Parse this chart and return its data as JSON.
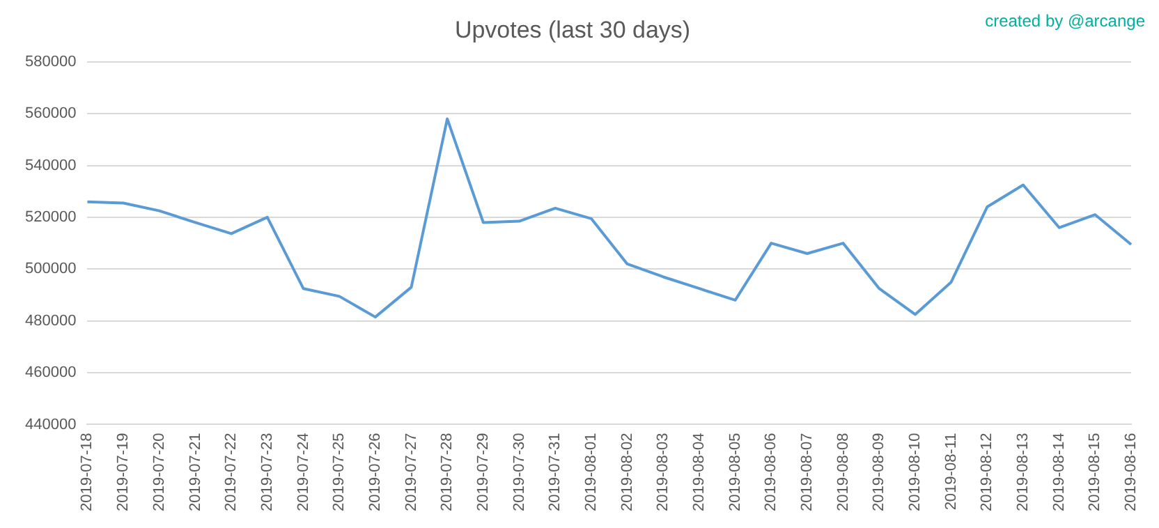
{
  "chart_data": {
    "type": "line",
    "title": "Upvotes (last 30 days)",
    "annotations": [
      "created by @arcange"
    ],
    "categories": [
      "2019-07-18",
      "2019-07-19",
      "2019-07-20",
      "2019-07-21",
      "2019-07-22",
      "2019-07-23",
      "2019-07-24",
      "2019-07-25",
      "2019-07-26",
      "2019-07-27",
      "2019-07-28",
      "2019-07-29",
      "2019-07-30",
      "2019-07-31",
      "2019-08-01",
      "2019-08-02",
      "2019-08-03",
      "2019-08-04",
      "2019-08-05",
      "2019-08-06",
      "2019-08-07",
      "2019-08-08",
      "2019-08-09",
      "2019-08-10",
      "2019-08-11",
      "2019-08-12",
      "2019-08-13",
      "2019-08-14",
      "2019-08-15",
      "2019-08-16"
    ],
    "series": [
      {
        "color": "#5b9bd5",
        "values": [
          526000,
          525500,
          522500,
          518000,
          513700,
          520000,
          492500,
          489500,
          481500,
          493000,
          558000,
          518000,
          518500,
          523500,
          519500,
          502000,
          497000,
          492500,
          488000,
          510000,
          506000,
          510000,
          492500,
          482500,
          495000,
          524000,
          532500,
          516000,
          521000,
          509500
        ]
      }
    ],
    "ylim": [
      440000,
      580000
    ],
    "yticks": [
      440000,
      460000,
      480000,
      500000,
      520000,
      540000,
      560000,
      580000
    ],
    "grid": "y",
    "legend": false,
    "marker": "none",
    "line_style": "solid"
  }
}
